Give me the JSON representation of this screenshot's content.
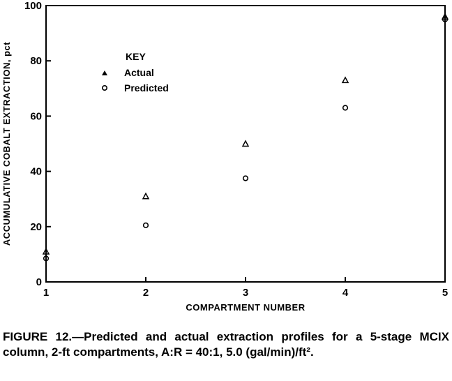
{
  "chart_data": {
    "type": "scatter",
    "title": "",
    "xlabel": "COMPARTMENT NUMBER",
    "ylabel": "ACCUMULATIVE COBALT EXTRACTION, pct",
    "xlim": [
      1,
      5
    ],
    "ylim": [
      0,
      100
    ],
    "x_ticks": [
      "1",
      "2",
      "3",
      "4",
      "5"
    ],
    "y_ticks": [
      "0",
      "20",
      "40",
      "60",
      "80",
      "100"
    ],
    "legend": {
      "title": "KEY",
      "placement": "upper-left"
    },
    "series": [
      {
        "name": "Actual",
        "marker": "triangle",
        "x": [
          1,
          2,
          3,
          4,
          5
        ],
        "y": [
          11,
          31,
          50,
          73,
          96
        ]
      },
      {
        "name": "Predicted",
        "marker": "circle",
        "x": [
          1,
          2,
          3,
          4,
          5
        ],
        "y": [
          8.5,
          20.5,
          37.5,
          63,
          95
        ]
      }
    ]
  },
  "caption": "FIGURE 12.—Predicted and actual extraction profiles for a 5-stage MCIX column, 2-ft compartments, A:R = 40:1, 5.0 (gal/min)/ft²."
}
